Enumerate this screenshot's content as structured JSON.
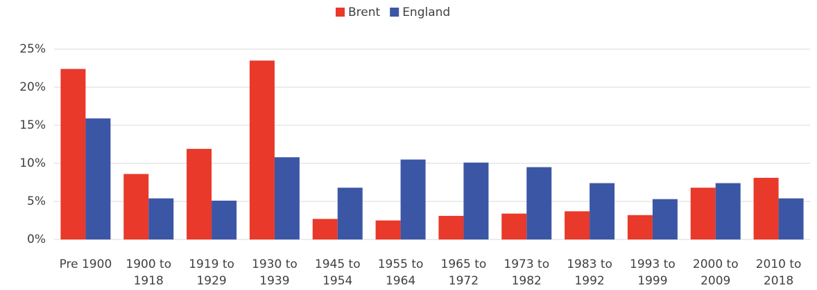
{
  "chart_data": {
    "type": "bar",
    "categories": [
      "Pre 1900",
      "1900 to 1918",
      "1919 to 1929",
      "1930 to 1939",
      "1945 to 1954",
      "1955 to 1964",
      "1965 to 1972",
      "1973 to 1982",
      "1983 to 1992",
      "1993 to 1999",
      "2000 to 2009",
      "2010 to 2018"
    ],
    "series": [
      {
        "name": "Brent",
        "color": "#e8392a",
        "values": [
          22.4,
          8.6,
          11.9,
          23.5,
          2.7,
          2.5,
          3.1,
          3.4,
          3.7,
          3.2,
          6.8,
          8.1
        ]
      },
      {
        "name": "England",
        "color": "#3c56a6",
        "values": [
          15.9,
          5.4,
          5.1,
          10.8,
          6.8,
          10.5,
          10.1,
          9.5,
          7.4,
          5.3,
          7.4,
          5.4
        ]
      }
    ],
    "ylim": [
      0,
      25
    ],
    "yticks": [
      {
        "value": 0,
        "label": "0%"
      },
      {
        "value": 5,
        "label": "5%"
      },
      {
        "value": 10,
        "label": "10%"
      },
      {
        "value": 15,
        "label": "15%"
      },
      {
        "value": 20,
        "label": "20%"
      },
      {
        "value": 25,
        "label": "25%"
      }
    ],
    "grid": true,
    "legend": "top"
  }
}
